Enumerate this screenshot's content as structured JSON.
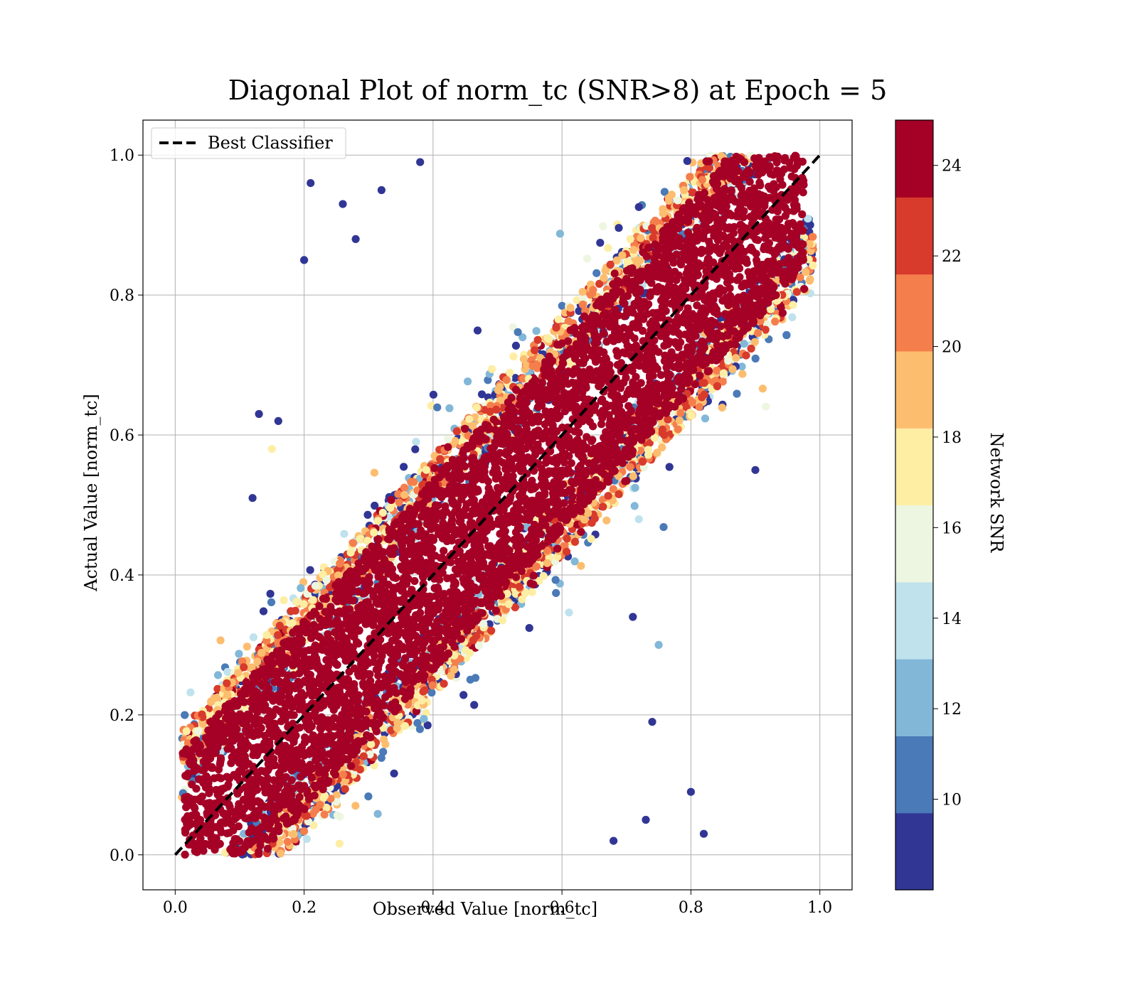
{
  "chart_data": {
    "type": "scatter",
    "title": "Diagonal Plot of norm_tc (SNR>8) at Epoch = 5",
    "xlabel": "Observed Value [norm_tc]",
    "ylabel": "Actual Value [norm_tc]",
    "xlim": [
      -0.05,
      1.05
    ],
    "ylim": [
      -0.05,
      1.05
    ],
    "x_ticks": [
      "0.0",
      "0.2",
      "0.4",
      "0.6",
      "0.8",
      "1.0"
    ],
    "y_ticks": [
      "0.0",
      "0.2",
      "0.4",
      "0.6",
      "0.8",
      "1.0"
    ],
    "grid": true,
    "legend": {
      "placement": "upper-left",
      "entries": [
        "Best Classifier"
      ]
    },
    "reference_line": {
      "label": "Best Classifier",
      "x": [
        0,
        1
      ],
      "y": [
        0,
        1
      ],
      "style": "dashed",
      "color": "#000000"
    },
    "colorbar": {
      "label": "Network SNR",
      "range": [
        8,
        25
      ],
      "ticks": [
        "10",
        "12",
        "14",
        "16",
        "18",
        "20",
        "22",
        "24"
      ],
      "tick_values": [
        10,
        12,
        14,
        16,
        18,
        20,
        22,
        24
      ],
      "colors": [
        "#313695",
        "#4a7ab7",
        "#82b7d8",
        "#bfe2ed",
        "#edf6e0",
        "#fdeea4",
        "#fdbd6f",
        "#f57f4c",
        "#d83a2c",
        "#a50026"
      ]
    },
    "point_colors": {
      "low_snr": "#313695",
      "high_snr": "#a50026"
    },
    "series": [
      {
        "description": "points clustered along the diagonal band; high-SNR points (dark red) concentrated near y = x, low-SNR points (blue) scattered farther off-diagonal",
        "band_core_halfwidth": 0.13,
        "points": [
          {
            "x": 0.12,
            "y": 0.51,
            "snr": 9
          },
          {
            "x": 0.13,
            "y": 0.63,
            "snr": 9
          },
          {
            "x": 0.16,
            "y": 0.62,
            "snr": 9
          },
          {
            "x": 0.2,
            "y": 0.85,
            "snr": 9
          },
          {
            "x": 0.21,
            "y": 0.96,
            "snr": 9
          },
          {
            "x": 0.26,
            "y": 0.93,
            "snr": 9
          },
          {
            "x": 0.28,
            "y": 0.88,
            "snr": 9
          },
          {
            "x": 0.32,
            "y": 0.95,
            "snr": 9
          },
          {
            "x": 0.38,
            "y": 0.99,
            "snr": 9
          },
          {
            "x": 0.15,
            "y": 0.58,
            "snr": 18
          },
          {
            "x": 0.68,
            "y": 0.02,
            "snr": 9
          },
          {
            "x": 0.74,
            "y": 0.19,
            "snr": 9
          },
          {
            "x": 0.8,
            "y": 0.09,
            "snr": 9
          },
          {
            "x": 0.82,
            "y": 0.03,
            "snr": 9
          },
          {
            "x": 0.9,
            "y": 0.55,
            "snr": 9
          },
          {
            "x": 0.75,
            "y": 0.3,
            "snr": 12
          },
          {
            "x": 0.71,
            "y": 0.34,
            "snr": 9
          },
          {
            "x": 0.73,
            "y": 0.05,
            "snr": 9
          }
        ]
      }
    ]
  }
}
